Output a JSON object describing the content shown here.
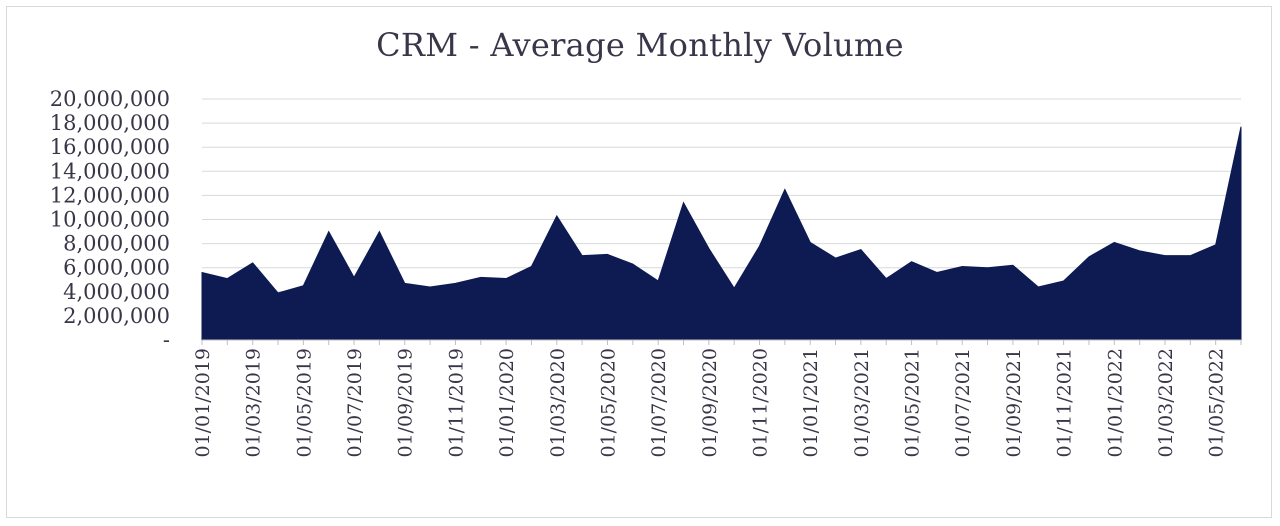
{
  "chart_data": {
    "type": "area",
    "title": "CRM - Average Monthly Volume",
    "xlabel": "",
    "ylabel": "",
    "ylim": [
      0,
      20000000
    ],
    "grid": true,
    "color": "#0d1b52",
    "y_ticks": [
      {
        "value": 0,
        "label": "-"
      },
      {
        "value": 2000000,
        "label": "2,000,000"
      },
      {
        "value": 4000000,
        "label": "4,000,000"
      },
      {
        "value": 6000000,
        "label": "6,000,000"
      },
      {
        "value": 8000000,
        "label": "8,000,000"
      },
      {
        "value": 10000000,
        "label": "10,000,000"
      },
      {
        "value": 12000000,
        "label": "12,000,000"
      },
      {
        "value": 14000000,
        "label": "14,000,000"
      },
      {
        "value": 16000000,
        "label": "16,000,000"
      },
      {
        "value": 18000000,
        "label": "18,000,000"
      },
      {
        "value": 20000000,
        "label": "20,000,000"
      }
    ],
    "x_tick_labels": [
      "01/01/2019",
      "01/03/2019",
      "01/05/2019",
      "01/07/2019",
      "01/09/2019",
      "01/11/2019",
      "01/01/2020",
      "01/03/2020",
      "01/05/2020",
      "01/07/2020",
      "01/09/2020",
      "01/11/2020",
      "01/01/2021",
      "01/03/2021",
      "01/05/2021",
      "01/07/2021",
      "01/09/2021",
      "01/11/2021",
      "01/01/2022",
      "01/03/2022",
      "01/05/2022"
    ],
    "x": [
      "2019-01",
      "2019-02",
      "2019-03",
      "2019-04",
      "2019-05",
      "2019-06",
      "2019-07",
      "2019-08",
      "2019-09",
      "2019-10",
      "2019-11",
      "2019-12",
      "2020-01",
      "2020-02",
      "2020-03",
      "2020-04",
      "2020-05",
      "2020-06",
      "2020-07",
      "2020-08",
      "2020-09",
      "2020-10",
      "2020-11",
      "2020-12",
      "2021-01",
      "2021-02",
      "2021-03",
      "2021-04",
      "2021-05",
      "2021-06",
      "2021-07",
      "2021-08",
      "2021-09",
      "2021-10",
      "2021-11",
      "2021-12",
      "2022-01",
      "2022-02",
      "2022-03",
      "2022-04",
      "2022-05",
      "2022-06"
    ],
    "values": [
      5600000,
      5100000,
      6400000,
      3900000,
      4500000,
      9000000,
      5200000,
      9000000,
      4700000,
      4400000,
      4700000,
      5200000,
      5100000,
      6100000,
      10300000,
      7000000,
      7100000,
      6300000,
      4900000,
      11400000,
      7600000,
      4300000,
      7800000,
      12500000,
      8100000,
      6800000,
      7500000,
      5100000,
      6500000,
      5600000,
      6100000,
      6000000,
      6200000,
      4400000,
      4900000,
      6900000,
      8100000,
      7400000,
      7000000,
      7000000,
      7900000,
      17700000
    ]
  }
}
